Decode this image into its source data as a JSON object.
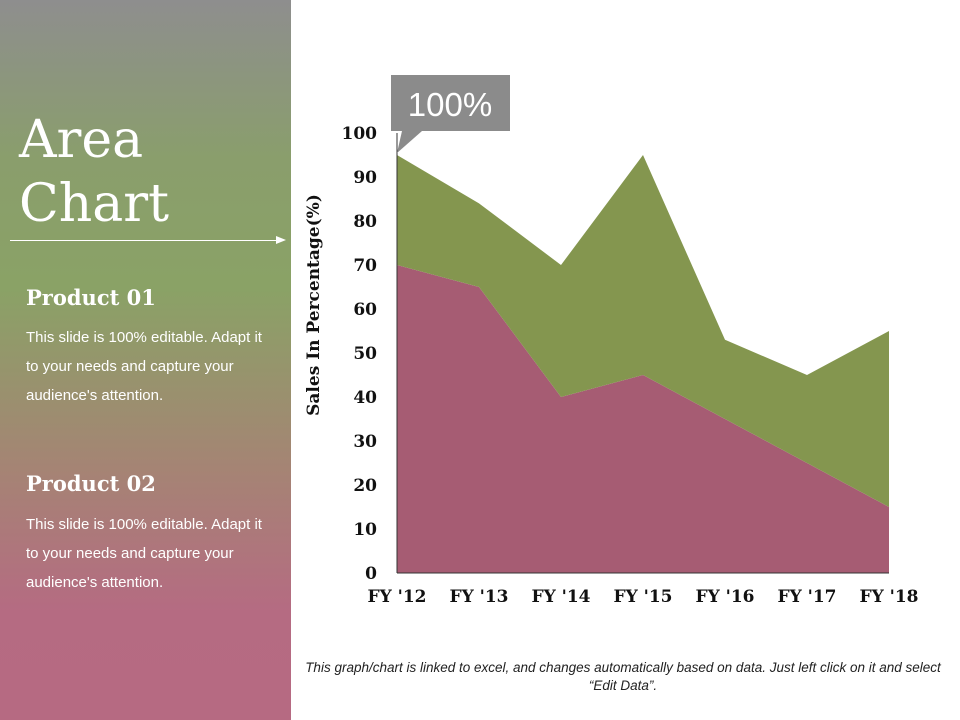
{
  "slide": {
    "title_lines": [
      "Area",
      "Chart"
    ],
    "products": [
      {
        "heading": "Product 01",
        "text": "This slide is 100% editable. Adapt it to your needs and capture your audience's attention."
      },
      {
        "heading": "Product 02",
        "text": "This slide is 100% editable. Adapt it to your needs and capture your audience's attention."
      }
    ],
    "callout": "100%",
    "footnote": "This graph/chart is linked to excel, and changes automatically based on data. Just left click on it and select “Edit Data”.",
    "colors": {
      "series_top": "#84964f",
      "series_bottom": "#a65c73"
    }
  },
  "chart_data": {
    "type": "area",
    "categories": [
      "FY '12",
      "FY '13",
      "FY '14",
      "FY '15",
      "FY '16",
      "FY '17",
      "FY '18"
    ],
    "series": [
      {
        "values": [
          70,
          65,
          40,
          45,
          35,
          25,
          15
        ],
        "color": "#a65c73"
      },
      {
        "values": [
          25,
          19,
          30,
          50,
          18,
          20,
          40
        ],
        "color": "#84964f"
      }
    ],
    "stacked": true,
    "ylabel": "Sales In Percentage(%)",
    "ylim": [
      0,
      100
    ],
    "yticks": [
      0,
      10,
      20,
      30,
      40,
      50,
      60,
      70,
      80,
      90,
      100
    ],
    "grid": false,
    "legend": "none"
  }
}
